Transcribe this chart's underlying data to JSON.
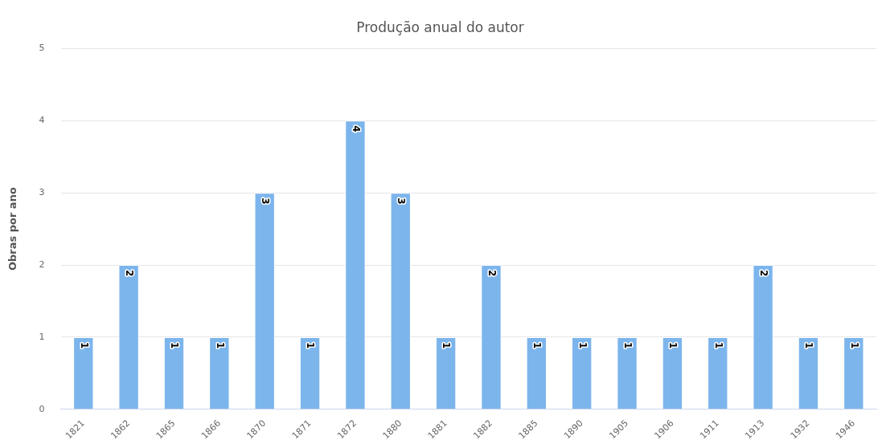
{
  "chart_data": {
    "type": "bar",
    "title": "Produção anual do autor",
    "ylabel": "Obras por ano",
    "categories": [
      "1821",
      "1862",
      "1865",
      "1866",
      "1870",
      "1871",
      "1872",
      "1880",
      "1881",
      "1882",
      "1885",
      "1890",
      "1905",
      "1906",
      "1911",
      "1913",
      "1932",
      "1946"
    ],
    "values": [
      1,
      2,
      1,
      1,
      3,
      1,
      4,
      3,
      1,
      2,
      1,
      1,
      1,
      1,
      1,
      2,
      1,
      1
    ],
    "color": "#7cb5ec",
    "ylim": [
      0,
      5
    ],
    "yticks": [
      0,
      1,
      2,
      3,
      4,
      5
    ],
    "grid": "y",
    "legend": false,
    "data_labels": true
  }
}
